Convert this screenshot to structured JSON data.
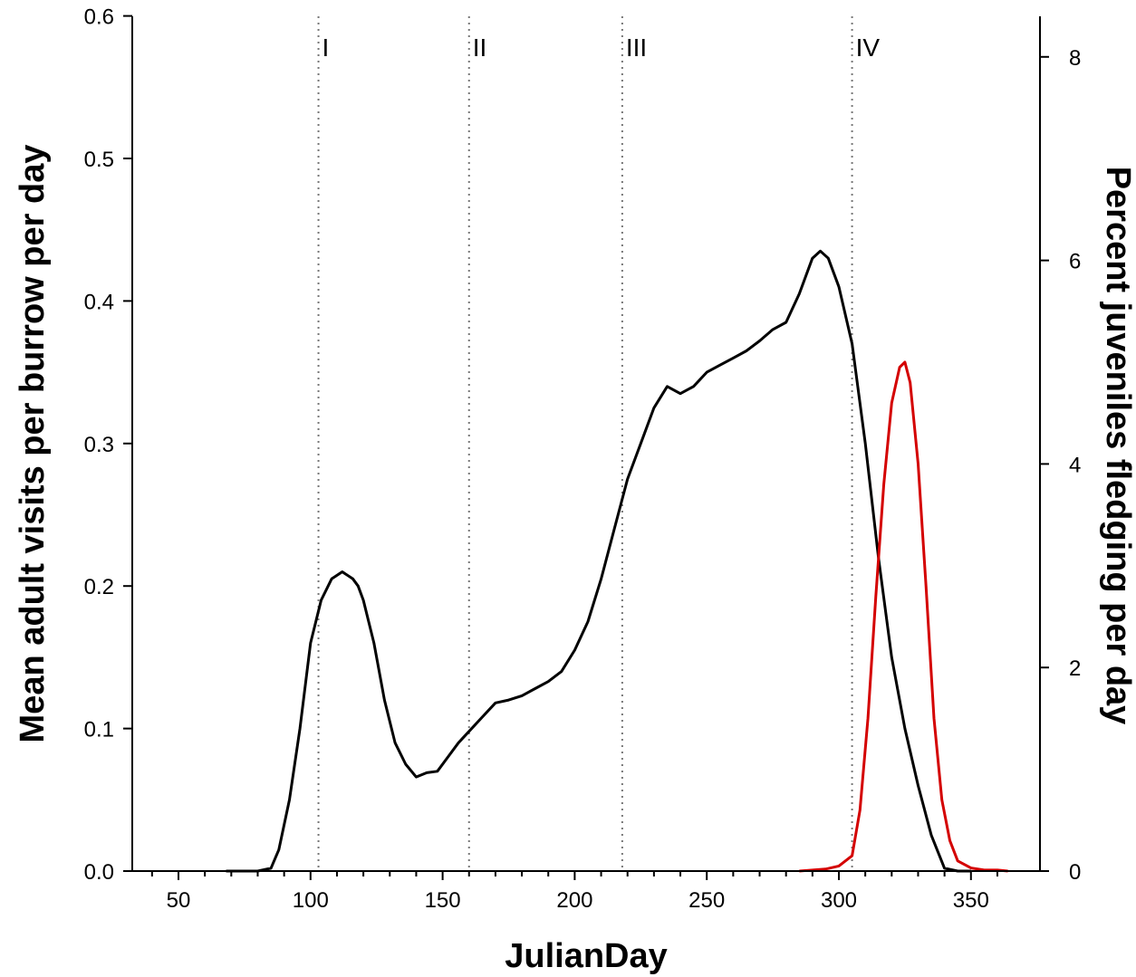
{
  "chart_data": {
    "type": "line",
    "title": "",
    "xlabel": "JulianDay",
    "ylabel_left": "Mean adult visits per burrow per day",
    "ylabel_right": "Percent juveniles fledging per day",
    "xlim": [
      30,
      370
    ],
    "ylim_left": [
      0,
      0.6
    ],
    "ylim_right": [
      0,
      8.5
    ],
    "x_ticks": [
      50,
      100,
      150,
      200,
      250,
      300,
      350
    ],
    "y_ticks_left": [
      0.0,
      0.1,
      0.2,
      0.3,
      0.4,
      0.5,
      0.6
    ],
    "y_ticks_left_labels": [
      "0.0",
      "0.1",
      "0.2",
      "0.3",
      "0.4",
      "0.5",
      "0.6"
    ],
    "y_ticks_right": [
      0,
      2,
      4,
      6,
      8
    ],
    "grid": false,
    "legend": "none",
    "phase_lines": [
      {
        "label": "I",
        "x": 103
      },
      {
        "label": "II",
        "x": 160
      },
      {
        "label": "III",
        "x": 218
      },
      {
        "label": "IV",
        "x": 305
      }
    ],
    "series": [
      {
        "axis": "left",
        "color": "#000000",
        "x": [
          68,
          80,
          85,
          88,
          92,
          96,
          100,
          104,
          108,
          112,
          116,
          118,
          120,
          124,
          128,
          132,
          136,
          140,
          144,
          148,
          152,
          156,
          160,
          165,
          170,
          175,
          180,
          185,
          190,
          195,
          200,
          205,
          210,
          215,
          220,
          225,
          230,
          235,
          240,
          245,
          250,
          255,
          260,
          265,
          270,
          275,
          280,
          285,
          290,
          293,
          296,
          300,
          305,
          310,
          315,
          320,
          325,
          330,
          335,
          340,
          345,
          350
        ],
        "y": [
          0.0,
          0.0,
          0.002,
          0.015,
          0.05,
          0.1,
          0.16,
          0.19,
          0.205,
          0.21,
          0.205,
          0.2,
          0.19,
          0.16,
          0.12,
          0.09,
          0.075,
          0.066,
          0.069,
          0.07,
          0.08,
          0.09,
          0.098,
          0.108,
          0.118,
          0.12,
          0.123,
          0.128,
          0.133,
          0.14,
          0.155,
          0.175,
          0.205,
          0.24,
          0.275,
          0.3,
          0.325,
          0.34,
          0.335,
          0.34,
          0.35,
          0.355,
          0.36,
          0.365,
          0.372,
          0.38,
          0.385,
          0.405,
          0.43,
          0.435,
          0.43,
          0.41,
          0.37,
          0.3,
          0.22,
          0.15,
          0.1,
          0.06,
          0.025,
          0.002,
          0.0,
          0.0
        ]
      },
      {
        "axis": "right",
        "color": "#d40000",
        "x": [
          285,
          295,
          300,
          305,
          308,
          311,
          314,
          317,
          320,
          323,
          325,
          327,
          330,
          333,
          336,
          339,
          342,
          345,
          350,
          355,
          360,
          364
        ],
        "y": [
          0.0,
          0.02,
          0.05,
          0.15,
          0.6,
          1.5,
          2.7,
          3.8,
          4.6,
          4.95,
          5.0,
          4.8,
          4.0,
          2.8,
          1.5,
          0.7,
          0.3,
          0.1,
          0.03,
          0.01,
          0.01,
          0.0
        ]
      }
    ]
  }
}
